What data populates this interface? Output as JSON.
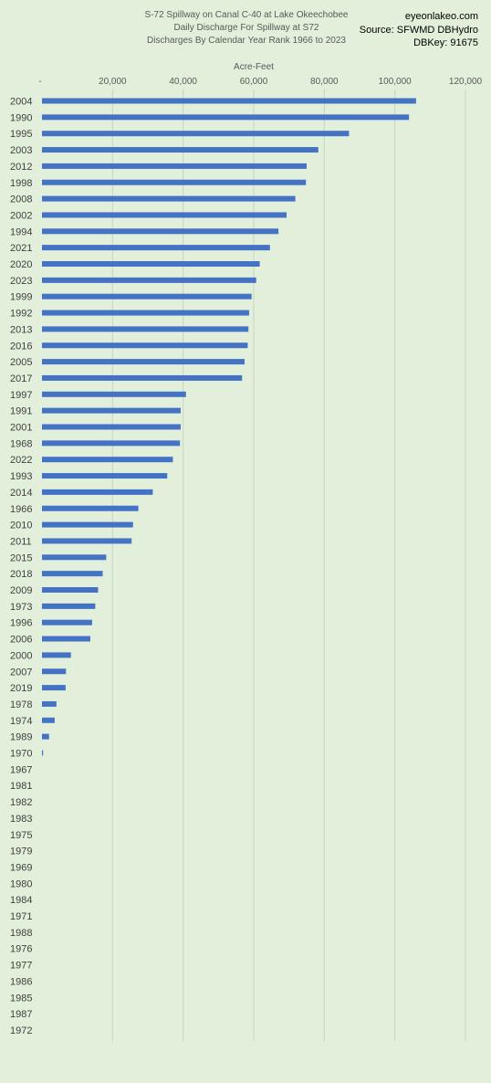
{
  "header": {
    "title_lines": [
      "S-72 Spillway on Canal C-40 at Lake Okeechobee",
      "Daily Discharge For Spillway at S72",
      "Discharges By Calendar Year Rank 1966 to 2023"
    ],
    "source_lines": [
      "eyeonlakeo.com",
      "Source: SFWMD DBHydro",
      "DBKey: 91675"
    ]
  },
  "chart_data": {
    "type": "bar",
    "orientation": "horizontal",
    "title": "S-72 Spillway on Canal C-40 at Lake Okeechobee",
    "xlabel": "Acre-Feet",
    "ylabel": "",
    "xlim": [
      0,
      120000
    ],
    "x_ticks": [
      0,
      20000,
      40000,
      60000,
      80000,
      100000,
      120000
    ],
    "x_tick_labels": [
      "-",
      "20,000",
      "40,000",
      "60,000",
      "80,000",
      "100,000",
      "120,000"
    ],
    "axis_position": "top",
    "grid": true,
    "bar_color": "#4472c4",
    "categories": [
      "2004",
      "1990",
      "1995",
      "2003",
      "2012",
      "1998",
      "2008",
      "2002",
      "1994",
      "2021",
      "2020",
      "2023",
      "1999",
      "1992",
      "2013",
      "2016",
      "2005",
      "2017",
      "1997",
      "1991",
      "2001",
      "1968",
      "2022",
      "1993",
      "2014",
      "1966",
      "2010",
      "2011",
      "2015",
      "2018",
      "2009",
      "1973",
      "1996",
      "2006",
      "2000",
      "2007",
      "2019",
      "1978",
      "1974",
      "1989",
      "1970",
      "1967",
      "1981",
      "1982",
      "1983",
      "1975",
      "1979",
      "1969",
      "1980",
      "1984",
      "1971",
      "1988",
      "1976",
      "1977",
      "1986",
      "1985",
      "1987",
      "1972"
    ],
    "values": [
      106000,
      104000,
      87000,
      78300,
      75000,
      74800,
      71800,
      69300,
      67000,
      64600,
      61700,
      60700,
      59400,
      58700,
      58500,
      58300,
      57400,
      56700,
      40800,
      39300,
      39300,
      39100,
      37100,
      35500,
      31400,
      27300,
      25800,
      25400,
      18200,
      17200,
      15900,
      15100,
      14200,
      13700,
      8200,
      6800,
      6700,
      4100,
      3600,
      2000,
      300,
      0,
      0,
      0,
      0,
      0,
      0,
      0,
      0,
      0,
      0,
      0,
      0,
      0,
      0,
      0,
      0,
      0
    ]
  }
}
